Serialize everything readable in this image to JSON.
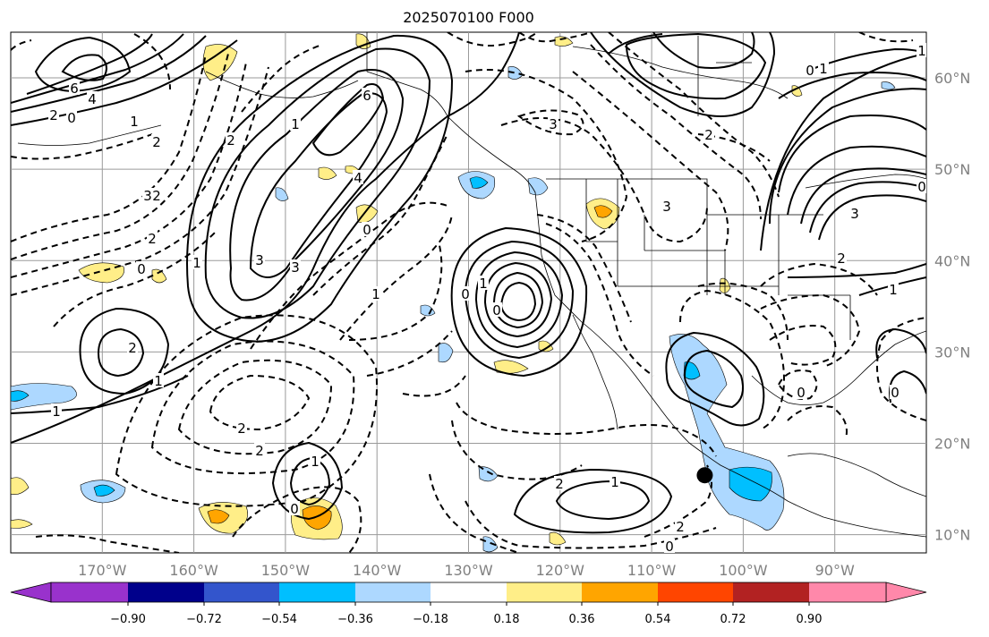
{
  "title": "2025070100 F000",
  "map": {
    "lon_range": [
      -180,
      -80
    ],
    "lat_range": [
      8,
      65
    ],
    "lat_labels": [
      "60°N",
      "50°N",
      "40°N",
      "30°N",
      "20°N",
      "10°N"
    ],
    "lat_values": [
      60,
      50,
      40,
      30,
      20,
      10
    ],
    "lon_labels": [
      "170°W",
      "160°W",
      "150°W",
      "140°W",
      "130°W",
      "120°W",
      "110°W",
      "100°W",
      "90°W"
    ],
    "lon_values": [
      -170,
      -160,
      -150,
      -140,
      -130,
      -120,
      -110,
      -100,
      -90
    ],
    "marker": {
      "lon": -104.2,
      "lat": 16.5
    },
    "contour_labels": [
      "6",
      "4",
      "2",
      "0",
      "1",
      "2",
      "6",
      "1",
      "2",
      "3",
      "3",
      "0",
      "2",
      "1",
      "0",
      "3",
      "2",
      "1",
      "1",
      "2",
      "1",
      "0",
      "2",
      "0",
      "1",
      "0",
      "1",
      "3",
      "2",
      "3",
      "0",
      "2",
      "1",
      "2",
      "0",
      "4",
      "2",
      "0",
      "1",
      "2",
      "3",
      "0",
      "1",
      "0",
      "1"
    ]
  },
  "colorbar": {
    "colors": [
      "#9932cc",
      "#00008b",
      "#3355cc",
      "#00bfff",
      "#add8ff",
      "#ffffff",
      "#ffee88",
      "#ffa500",
      "#ff4500",
      "#b22222",
      "#ff88aa"
    ],
    "tick_labels": [
      "−0.90",
      "−0.72",
      "−0.54",
      "−0.36",
      "−0.18",
      "0.18",
      "0.36",
      "0.54",
      "0.72",
      "0.90"
    ]
  }
}
